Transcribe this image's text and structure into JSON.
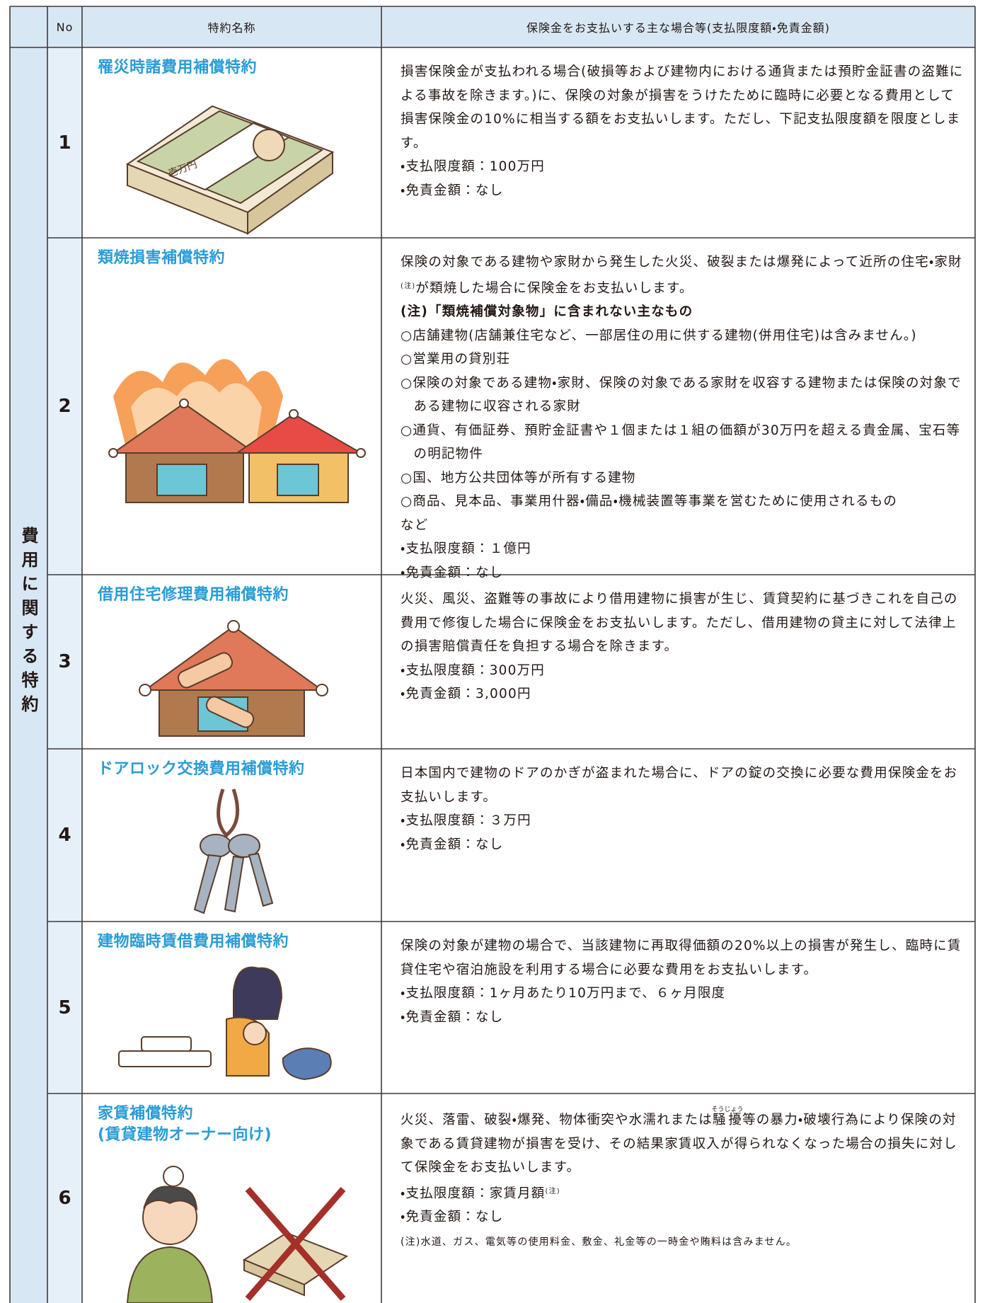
{
  "header": {
    "category": "",
    "no": "No",
    "name": "特約名称",
    "description": "保険金をお支払いする主な場合等(支払限度額・免責金額)"
  },
  "category": "費用に関する特約",
  "rows": [
    {
      "no": "1",
      "name": [
        "罹災時諸費用補償特約"
      ],
      "description": [
        [
          {
            "text": "損害保険金が支払われる場合(破損等および建物内における通貨または預貯金証書の盗難による事故を除きます。)に、保険の対象が損害をうけたために臨時に必要となる費用として損害保険金の10%に相当する額をお支払いします。ただし、下記支払限度額を限度とします。"
          }
        ],
        [
          {
            "text": "・支払限度額：100万円"
          }
        ],
        [
          {
            "text": "・免責金額：なし"
          }
        ]
      ]
    },
    {
      "no": "2",
      "name": [
        "類焼損害補償特約"
      ],
      "description": [
        [
          {
            "text": "保険の対象である建物や家財から発生した火災、破裂または爆発によって近所の住宅・家財"
          },
          {
            "sup": "(注)"
          },
          {
            "text": "が類焼した場合に保険金をお支払いします。"
          }
        ],
        [
          {
            "bold": "(注)「類焼補償対象物」に含まれない主なもの"
          }
        ],
        [
          {
            "item": "○店舗建物(店舗兼住宅など、一部居住の用に供する建物(併用住宅)は含みません。)"
          }
        ],
        [
          {
            "item": "○営業用の貸別荘"
          }
        ],
        [
          {
            "item": "○保険の対象である建物・家財、保険の対象である家財を収容する建物または保険の対象である建物に収容される家財"
          }
        ],
        [
          {
            "item": "○通貨、有価証券、預貯金証書や１個または１組の価額が30万円を超える貴金属、宝石等の明記物件"
          }
        ],
        [
          {
            "item": "○国、地方公共団体等が所有する建物"
          }
        ],
        [
          {
            "item": "○商品、見本品、事業用什器・備品・機械装置等事業を営むために使用されるもの"
          }
        ],
        [
          {
            "item": "など"
          }
        ],
        [
          {
            "text": "・支払限度額：１億円"
          }
        ],
        [
          {
            "text": "・免責金額：なし"
          }
        ]
      ]
    },
    {
      "no": "3",
      "name": [
        "借用住宅修理費用補償特約"
      ],
      "description": [
        [
          {
            "text": "火災、風災、盗難等の事故により借用建物に損害が生じ、賃貸契約に基づきこれを自己の費用で修復した場合に保険金をお支払いします。ただし、借用建物の貸主に対して法律上の損害賠償責任を負担する場合を除きます。"
          }
        ],
        [
          {
            "text": "・支払限度額：300万円"
          }
        ],
        [
          {
            "text": "・免責金額：3,000円"
          }
        ]
      ]
    },
    {
      "no": "4",
      "name": [
        "ドアロック交換費用補償特約"
      ],
      "description": [
        [
          {
            "text": "日本国内で建物のドアのかぎが盗まれた場合に、ドアの錠の交換に必要な費用保険金をお支払いします。"
          }
        ],
        [
          {
            "text": "・支払限度額：３万円"
          }
        ],
        [
          {
            "text": "・免責金額：なし"
          }
        ]
      ]
    },
    {
      "no": "5",
      "name": [
        "建物臨時賃借費用補償特約"
      ],
      "description": [
        [
          {
            "text": "保険の対象が建物の場合で、当該建物に再取得価額の20%以上の損害が発生し、臨時に賃貸住宅や宿泊施設を利用する場合に必要な費用をお支払いします。"
          }
        ],
        [
          {
            "text": "・支払限度額：1ヶ月あたり10万円まで、６ヶ月限度"
          }
        ],
        [
          {
            "text": "・免責金額：なし"
          }
        ]
      ]
    },
    {
      "no": "6",
      "name": [
        "家賃補償特約",
        "(賃貸建物オーナー向け)"
      ],
      "description": [
        [
          {
            "text": "火災、落雷、破裂・爆発、物体衝突や水濡れまたは"
          },
          {
            "ruby": "騒擾",
            "rt": "そうじょう"
          },
          {
            "text": "等の暴力・破壊行為により保険の対象である賃貸建物が損害を受け、その結果家賃収入が得られなくなった場合の損失に対して保険金をお支払いします。"
          }
        ],
        [
          {
            "text": "・支払限度額：家賃月額"
          },
          {
            "sup": "(注)"
          }
        ],
        [
          {
            "text": "・免責金額：なし"
          }
        ],
        [
          {
            "note": "(注)水道、ガス、電気等の使用料金、敷金、礼金等の一時金や賄料は含みません。"
          }
        ]
      ]
    }
  ]
}
